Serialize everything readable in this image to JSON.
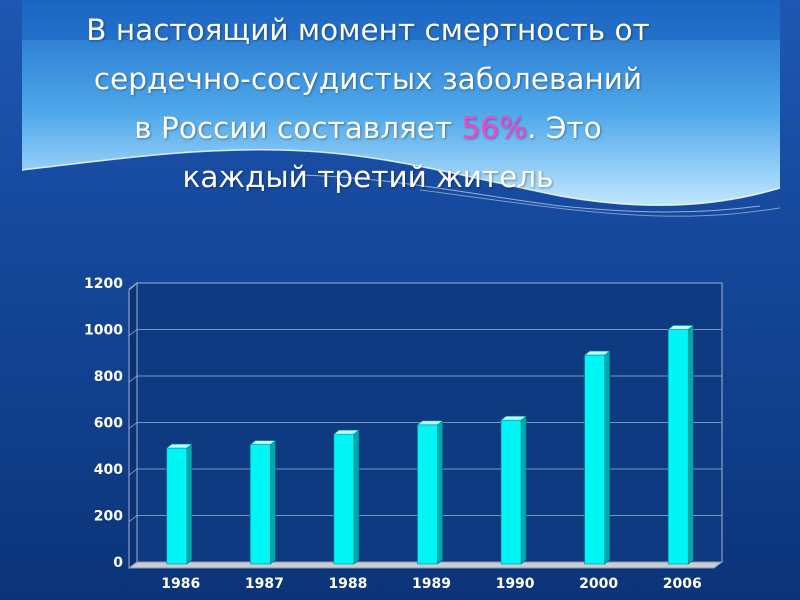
{
  "colors": {
    "background": "#0d3a80",
    "title_text": "#ffffff",
    "accent": "#ff3fcf",
    "bar_front": "#00f5f5",
    "bar_top": "#b8ffff",
    "bar_side": "#00a8b0",
    "axis_text": "#ffffff",
    "gridline": "#9fb3d8"
  },
  "title": {
    "line1": "В настоящий момент смертность от",
    "line2": "сердечно-сосудистых заболеваний",
    "line3_before": "в России составляет ",
    "line3_accent": "56%",
    "line3_after": ". Это",
    "line4": "каждый третий житель"
  },
  "chart_data": {
    "type": "bar",
    "categories": [
      "1986",
      "1987",
      "1988",
      "1989",
      "1990",
      "2000",
      "2006"
    ],
    "values": [
      490,
      505,
      550,
      590,
      610,
      890,
      1000
    ],
    "y_ticks": [
      "0",
      "200",
      "400",
      "600",
      "800",
      "1000",
      "1200"
    ],
    "ylim": [
      0,
      1200
    ],
    "grid": true,
    "legend": "none"
  }
}
